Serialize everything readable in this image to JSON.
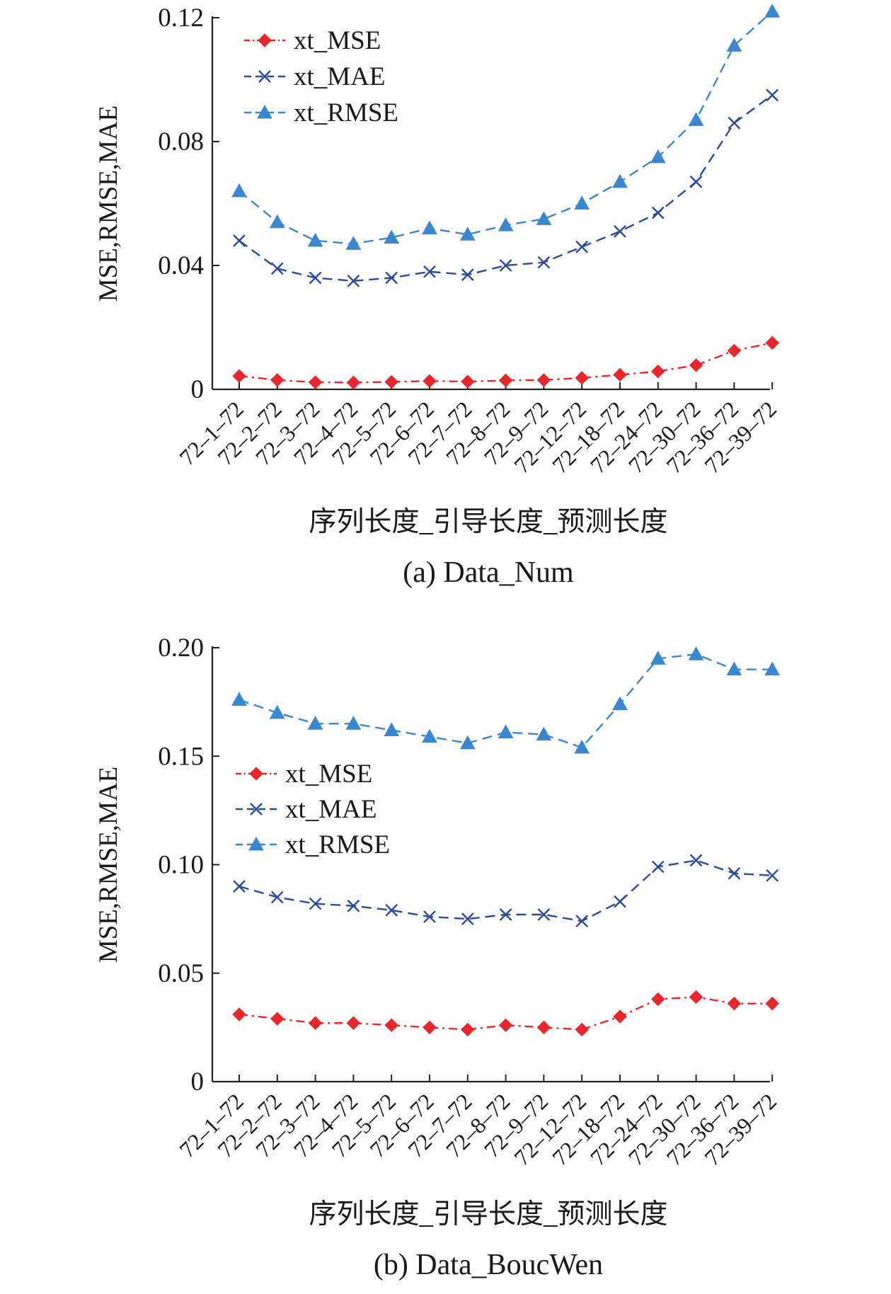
{
  "chart_data": [
    {
      "type": "line",
      "caption": "(a) Data_Num",
      "xlabel": "序列长度_引导长度_预测长度",
      "ylabel": "MSE,RMSE,MAE",
      "ylim": [
        0,
        0.12
      ],
      "yticks": [
        0,
        0.04,
        0.08,
        0.12
      ],
      "ytick_labels": [
        "0",
        "0.04",
        "0.08",
        "0.12"
      ],
      "legend_position": "top-left",
      "categories": [
        "72–1–72",
        "72–2–72",
        "72–3–72",
        "72–4–72",
        "72–5–72",
        "72–6–72",
        "72–7–72",
        "72–8–72",
        "72–9–72",
        "72–12–72",
        "72–18–72",
        "72–24–72",
        "72–30–72",
        "72–36–72",
        "72–39–72"
      ],
      "series": [
        {
          "name": "xt_MSE",
          "color": "#e8262c",
          "marker": "diamond",
          "dash": "dashdot",
          "values": [
            0.0043,
            0.003,
            0.0023,
            0.0022,
            0.0024,
            0.0027,
            0.0025,
            0.0029,
            0.003,
            0.0037,
            0.0047,
            0.0058,
            0.0078,
            0.0125,
            0.015
          ]
        },
        {
          "name": "xt_MAE",
          "color": "#2a4a9a",
          "marker": "x",
          "dash": "dash",
          "values": [
            0.048,
            0.039,
            0.036,
            0.035,
            0.036,
            0.038,
            0.037,
            0.04,
            0.041,
            0.046,
            0.051,
            0.057,
            0.067,
            0.086,
            0.095
          ]
        },
        {
          "name": "xt_RMSE",
          "color": "#3a86cf",
          "marker": "triangle",
          "dash": "dash",
          "values": [
            0.064,
            0.054,
            0.048,
            0.047,
            0.049,
            0.052,
            0.05,
            0.053,
            0.055,
            0.06,
            0.067,
            0.075,
            0.087,
            0.111,
            0.122
          ]
        }
      ]
    },
    {
      "type": "line",
      "caption": "(b) Data_BoucWen",
      "xlabel": "序列长度_引导长度_预测长度",
      "ylabel": "MSE,RMSE,MAE",
      "ylim": [
        0,
        0.2
      ],
      "yticks": [
        0,
        0.05,
        0.1,
        0.15,
        0.2
      ],
      "ytick_labels": [
        "0",
        "0.05",
        "0.10",
        "0.15",
        "0.20"
      ],
      "legend_position": "middle-left",
      "categories": [
        "72–1–72",
        "72–2–72",
        "72–3–72",
        "72–4–72",
        "72–5–72",
        "72–6–72",
        "72–7–72",
        "72–8–72",
        "72–9–72",
        "72–12–72",
        "72–18–72",
        "72–24–72",
        "72–30–72",
        "72–36–72",
        "72–39–72"
      ],
      "series": [
        {
          "name": "xt_MSE",
          "color": "#e8262c",
          "marker": "diamond",
          "dash": "dashdot",
          "values": [
            0.031,
            0.029,
            0.027,
            0.027,
            0.026,
            0.025,
            0.024,
            0.026,
            0.025,
            0.024,
            0.03,
            0.038,
            0.039,
            0.036,
            0.036
          ]
        },
        {
          "name": "xt_MAE",
          "color": "#2a4a9a",
          "marker": "x",
          "dash": "dash",
          "values": [
            0.09,
            0.085,
            0.082,
            0.081,
            0.079,
            0.076,
            0.075,
            0.077,
            0.077,
            0.074,
            0.083,
            0.099,
            0.102,
            0.096,
            0.095
          ]
        },
        {
          "name": "xt_RMSE",
          "color": "#3a86cf",
          "marker": "triangle",
          "dash": "dash",
          "values": [
            0.176,
            0.17,
            0.165,
            0.165,
            0.162,
            0.159,
            0.156,
            0.161,
            0.16,
            0.154,
            0.174,
            0.195,
            0.197,
            0.19,
            0.19
          ]
        }
      ]
    }
  ]
}
